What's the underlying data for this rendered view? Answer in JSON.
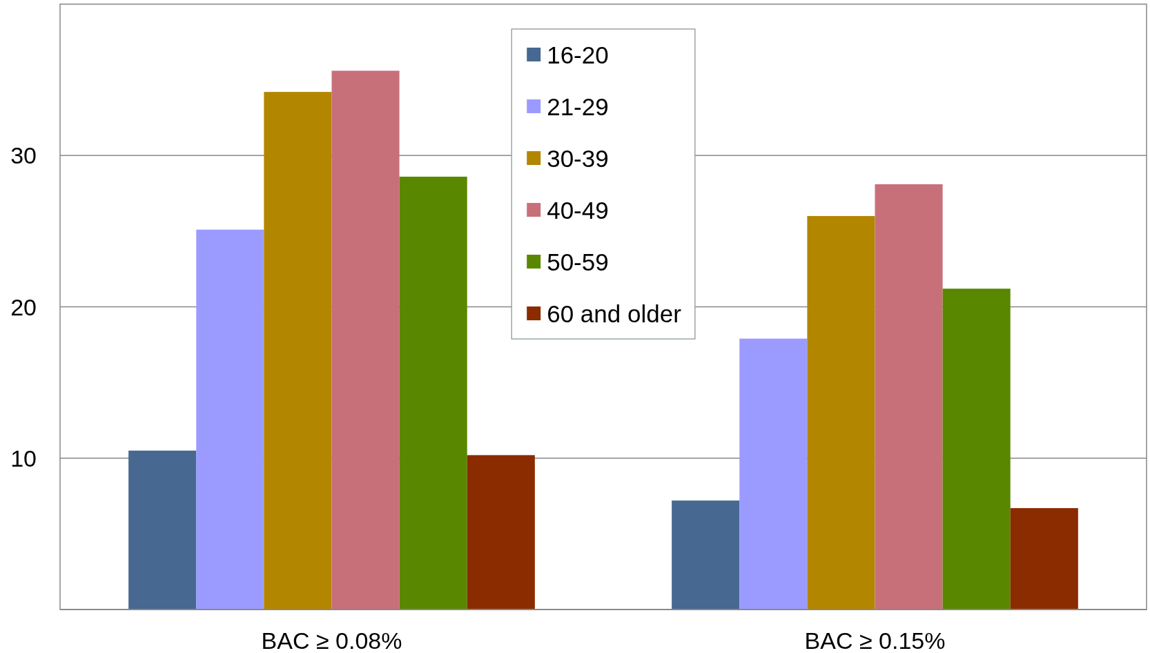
{
  "chart_data": {
    "type": "bar",
    "categories": [
      "BAC ≥ 0.08%",
      "BAC ≥ 0.15%"
    ],
    "series": [
      {
        "name": "16-20",
        "color": "#466891",
        "values": [
          10.5,
          7.2
        ]
      },
      {
        "name": "21-29",
        "color": "#9b9bff",
        "values": [
          25.1,
          17.9
        ]
      },
      {
        "name": "30-39",
        "color": "#b38600",
        "values": [
          34.2,
          26.0
        ]
      },
      {
        "name": "40-49",
        "color": "#c8707a",
        "values": [
          35.6,
          28.1
        ]
      },
      {
        "name": "50-59",
        "color": "#5a8700",
        "values": [
          28.6,
          21.2
        ]
      },
      {
        "name": "60 and older",
        "color": "#8b2b00",
        "values": [
          10.2,
          6.7
        ]
      }
    ],
    "ylim": [
      0,
      40
    ],
    "yticks": [
      10,
      20,
      30
    ],
    "grid": "y",
    "legend": "top"
  }
}
